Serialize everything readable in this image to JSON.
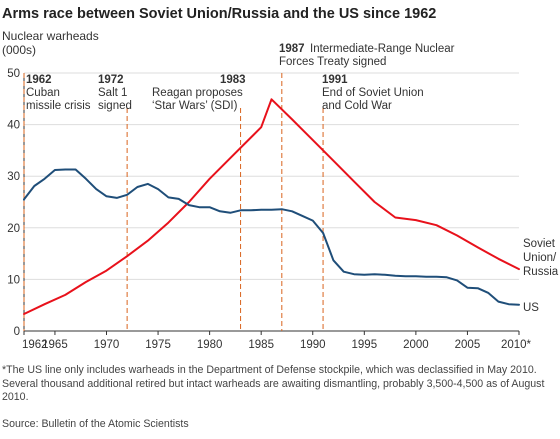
{
  "header": {
    "title": "Arms race between Soviet Union/Russia and the US since 1962"
  },
  "footer": {
    "footnote": "*The US line only includes warheads in the Department of Defense stockpile, which was declassified in May 2010. Several thousand additional retired but intact warheads are awaiting dismantling, probably 3,500-4,500 as of August 2010.",
    "source": "Source: Bulletin of the Atomic Scientists"
  },
  "chart_data": {
    "type": "line",
    "title": "Arms race between Soviet Union/Russia and the US since 1962",
    "ylabel": "Nuclear warheads (000s)",
    "xlabel": "",
    "xlim": [
      1962,
      2010
    ],
    "ylim": [
      0,
      50
    ],
    "grid": true,
    "xtick_labels": [
      "1962",
      "1965",
      "1970",
      "1975",
      "1980",
      "1985",
      "1990",
      "1995",
      "2000",
      "2005",
      "2010*"
    ],
    "xtick_values": [
      1962,
      1965,
      1970,
      1975,
      1980,
      1985,
      1990,
      1995,
      2000,
      2005,
      2010
    ],
    "ytick_labels": [
      "0",
      "10",
      "20",
      "30",
      "40",
      "50"
    ],
    "ytick_values": [
      0,
      10,
      20,
      30,
      40,
      50
    ],
    "series": [
      {
        "name": "Soviet Union/Russia",
        "label_lines": [
          "Soviet",
          "Union/",
          "Russia"
        ],
        "color": "#e8111b",
        "x": [
          1962,
          1964,
          1966,
          1968,
          1970,
          1972,
          1974,
          1976,
          1978,
          1980,
          1982,
          1984,
          1985,
          1986,
          1988,
          1990,
          1992,
          1994,
          1996,
          1998,
          2000,
          2002,
          2004,
          2006,
          2008,
          2010
        ],
        "y": [
          3.3,
          5.2,
          7.0,
          9.5,
          11.7,
          14.5,
          17.5,
          21.0,
          25.0,
          29.5,
          33.5,
          37.5,
          39.5,
          44.9,
          41.0,
          37.0,
          33.0,
          29.0,
          25.0,
          22.0,
          21.5,
          20.5,
          18.5,
          16.2,
          14.0,
          12.0
        ]
      },
      {
        "name": "US",
        "label_lines": [
          "US"
        ],
        "color": "#1f4e79",
        "x": [
          1962,
          1963,
          1964,
          1965,
          1966,
          1967,
          1968,
          1969,
          1970,
          1971,
          1972,
          1973,
          1974,
          1975,
          1976,
          1977,
          1978,
          1979,
          1980,
          1981,
          1982,
          1983,
          1984,
          1985,
          1986,
          1987,
          1988,
          1989,
          1990,
          1991,
          1992,
          1993,
          1994,
          1995,
          1996,
          1997,
          1998,
          1999,
          2000,
          2001,
          2002,
          2003,
          2004,
          2005,
          2006,
          2007,
          2008,
          2009,
          2010
        ],
        "y": [
          25.5,
          28.1,
          29.5,
          31.2,
          31.3,
          31.3,
          29.5,
          27.5,
          26.1,
          25.8,
          26.4,
          27.9,
          28.5,
          27.5,
          25.9,
          25.6,
          24.4,
          24.0,
          24.0,
          23.2,
          22.9,
          23.4,
          23.4,
          23.5,
          23.5,
          23.6,
          23.2,
          22.3,
          21.4,
          19.0,
          13.7,
          11.5,
          11.0,
          10.9,
          11.0,
          10.9,
          10.7,
          10.6,
          10.6,
          10.5,
          10.5,
          10.4,
          9.8,
          8.4,
          8.3,
          7.4,
          5.7,
          5.2,
          5.1
        ]
      }
    ],
    "annotations": [
      {
        "year_label": "1962",
        "text": [
          "Cuban",
          "missile crisis"
        ],
        "x": 1962
      },
      {
        "year_label": "1972",
        "text": [
          "Salt 1",
          "signed"
        ],
        "x": 1972
      },
      {
        "year_label": "1983",
        "text": [
          "Reagan proposes",
          "‘Star Wars’ (SDI)"
        ],
        "x": 1983
      },
      {
        "year_label": "1987",
        "text": [
          "Intermediate-Range Nuclear",
          "Forces Treaty signed"
        ],
        "x": 1987
      },
      {
        "year_label": "1991",
        "text": [
          "End of Soviet Union",
          "and Cold War"
        ],
        "x": 1991
      }
    ],
    "colors": {
      "annotation_line": "#d9641e",
      "grid": "#dddddd",
      "axis": "#333333"
    }
  }
}
